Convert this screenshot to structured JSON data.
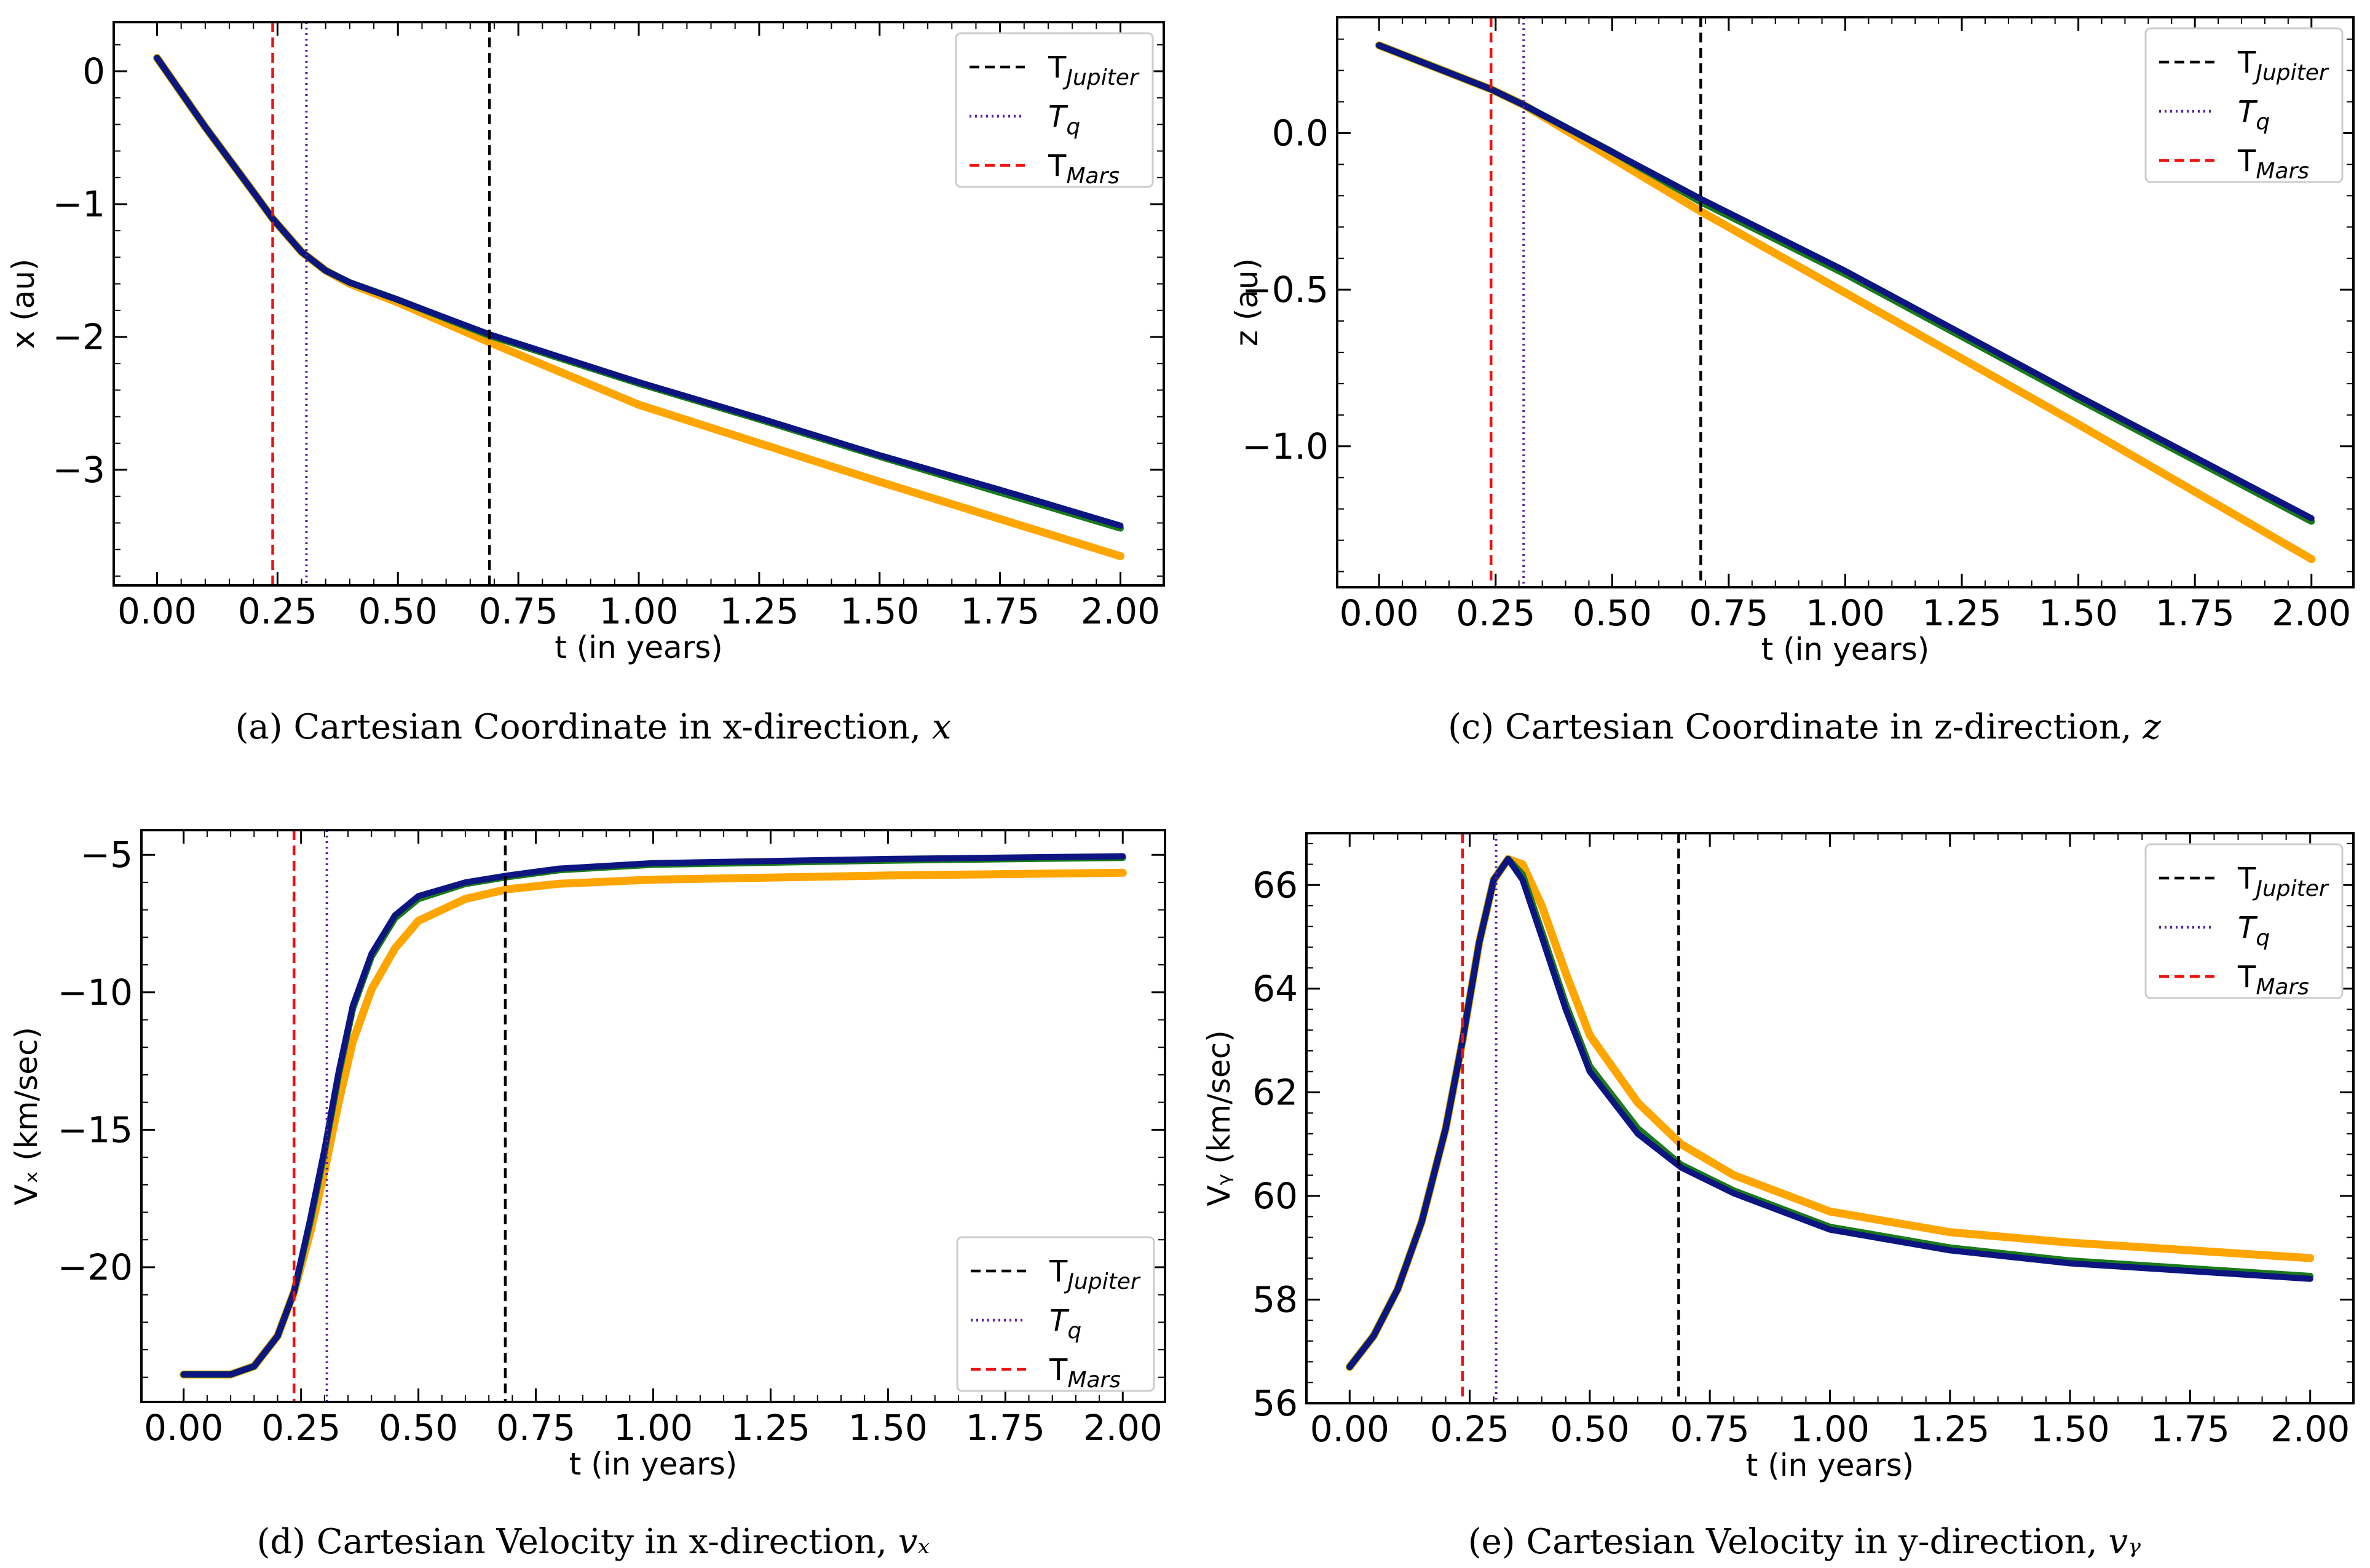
{
  "legend": {
    "jupiter": {
      "base": "T",
      "sub": "Jupiter",
      "color": "#000000",
      "dash": "dashed"
    },
    "q": {
      "base": "T",
      "sub": "q",
      "color": "#5a1fa0",
      "dash": "dotted"
    },
    "mars": {
      "base": "T",
      "sub": "Mars",
      "color": "#ee1111",
      "dash": "dashed"
    }
  },
  "colors": {
    "navy": "#0c1580",
    "green": "#1a7a1a",
    "orange": "#ffa500",
    "axis": "#000000"
  },
  "chart_data": [
    {
      "id": "a",
      "type": "line",
      "caption_text": "(a) Cartesian Coordinate in x-direction,",
      "caption_math": "x",
      "xlabel": "t (in years)",
      "ylabel": "x (au)",
      "xlim": [
        -0.09,
        2.09
      ],
      "ylim": [
        -3.87,
        0.37
      ],
      "xticks": [
        0.0,
        0.25,
        0.5,
        0.75,
        1.0,
        1.25,
        1.5,
        1.75,
        2.0
      ],
      "xtick_labels": [
        "0.00",
        "0.25",
        "0.50",
        "0.75",
        "1.00",
        "1.25",
        "1.50",
        "1.75",
        "2.00"
      ],
      "yticks": [
        0,
        -1,
        -2,
        -3
      ],
      "ytick_labels": [
        "0",
        "−1",
        "−2",
        "−3"
      ],
      "vlines": {
        "mars": 0.24,
        "q": 0.31,
        "jupiter": 0.69
      },
      "legend_position": "top-right",
      "series": [
        {
          "name": "orange",
          "x": [
            0.0,
            0.1,
            0.2,
            0.24,
            0.3,
            0.35,
            0.4,
            0.5,
            0.69,
            1.0,
            1.25,
            1.5,
            1.75,
            2.0
          ],
          "y": [
            0.1,
            -0.42,
            -0.91,
            -1.11,
            -1.36,
            -1.5,
            -1.6,
            -1.74,
            -2.04,
            -2.51,
            -2.8,
            -3.09,
            -3.37,
            -3.65
          ]
        },
        {
          "name": "green",
          "x": [
            0.0,
            0.1,
            0.2,
            0.24,
            0.3,
            0.35,
            0.4,
            0.5,
            0.69,
            1.0,
            1.25,
            1.5,
            1.75,
            2.0
          ],
          "y": [
            0.1,
            -0.42,
            -0.91,
            -1.11,
            -1.36,
            -1.5,
            -1.59,
            -1.72,
            -1.99,
            -2.35,
            -2.62,
            -2.9,
            -3.17,
            -3.44
          ]
        },
        {
          "name": "navy",
          "x": [
            0.0,
            0.1,
            0.2,
            0.24,
            0.3,
            0.35,
            0.4,
            0.5,
            0.69,
            1.0,
            1.25,
            1.5,
            1.75,
            2.0
          ],
          "y": [
            0.1,
            -0.42,
            -0.91,
            -1.11,
            -1.36,
            -1.5,
            -1.59,
            -1.72,
            -1.98,
            -2.34,
            -2.61,
            -2.89,
            -3.15,
            -3.42
          ]
        }
      ]
    },
    {
      "id": "c",
      "type": "line",
      "caption_text": "(c) Cartesian Coordinate in z-direction,",
      "caption_math": "z",
      "xlabel": "t (in years)",
      "ylabel": "z (au)",
      "xlim": [
        -0.09,
        2.09
      ],
      "ylim": [
        -1.45,
        0.37
      ],
      "xticks": [
        0.0,
        0.25,
        0.5,
        0.75,
        1.0,
        1.25,
        1.5,
        1.75,
        2.0
      ],
      "xtick_labels": [
        "0.00",
        "0.25",
        "0.50",
        "0.75",
        "1.00",
        "1.25",
        "1.50",
        "1.75",
        "2.00"
      ],
      "yticks": [
        0.0,
        -0.5,
        -1.0
      ],
      "ytick_labels": [
        "0.0",
        "−0.5",
        "−1.0"
      ],
      "vlines": {
        "mars": 0.24,
        "q": 0.31,
        "jupiter": 0.69
      },
      "legend_position": "top-right",
      "series": [
        {
          "name": "orange",
          "x": [
            0.0,
            0.24,
            0.31,
            0.5,
            0.69,
            1.0,
            1.5,
            2.0
          ],
          "y": [
            0.28,
            0.14,
            0.09,
            -0.08,
            -0.25,
            -0.51,
            -0.93,
            -1.36
          ]
        },
        {
          "name": "green",
          "x": [
            0.0,
            0.24,
            0.31,
            0.5,
            0.69,
            1.0,
            1.5,
            2.0
          ],
          "y": [
            0.28,
            0.14,
            0.09,
            -0.06,
            -0.22,
            -0.45,
            -0.85,
            -1.24
          ]
        },
        {
          "name": "navy",
          "x": [
            0.0,
            0.24,
            0.31,
            0.5,
            0.69,
            1.0,
            1.5,
            2.0
          ],
          "y": [
            0.28,
            0.14,
            0.09,
            -0.06,
            -0.21,
            -0.44,
            -0.84,
            -1.23
          ]
        }
      ]
    },
    {
      "id": "d",
      "type": "line",
      "caption_text": "(d) Cartesian Velocity in x-direction,",
      "caption_math": "vₓ",
      "xlabel": "t (in years)",
      "ylabel": "Vₓ (km/sec)",
      "xlim": [
        -0.09,
        2.09
      ],
      "ylim": [
        -24.9,
        -4.1
      ],
      "xticks": [
        0.0,
        0.25,
        0.5,
        0.75,
        1.0,
        1.25,
        1.5,
        1.75,
        2.0
      ],
      "xtick_labels": [
        "0.00",
        "0.25",
        "0.50",
        "0.75",
        "1.00",
        "1.25",
        "1.50",
        "1.75",
        "2.00"
      ],
      "yticks": [
        -5,
        -10,
        -15,
        -20
      ],
      "ytick_labels": [
        "−5",
        "−10",
        "−15",
        "−20"
      ],
      "vlines": {
        "mars": 0.235,
        "q": 0.305,
        "jupiter": 0.685
      },
      "legend_position": "bottom-right",
      "series": [
        {
          "name": "orange",
          "x": [
            0.0,
            0.1,
            0.15,
            0.2,
            0.235,
            0.27,
            0.3,
            0.33,
            0.36,
            0.4,
            0.45,
            0.5,
            0.6,
            0.69,
            0.8,
            1.0,
            1.5,
            2.0
          ],
          "y": [
            -23.9,
            -23.9,
            -23.6,
            -22.5,
            -20.9,
            -18.7,
            -16.5,
            -14.0,
            -11.8,
            -9.9,
            -8.4,
            -7.4,
            -6.6,
            -6.25,
            -6.05,
            -5.9,
            -5.75,
            -5.65
          ]
        },
        {
          "name": "green",
          "x": [
            0.0,
            0.1,
            0.15,
            0.2,
            0.235,
            0.27,
            0.3,
            0.33,
            0.36,
            0.4,
            0.45,
            0.5,
            0.6,
            0.69,
            0.8,
            1.0,
            1.5,
            2.0
          ],
          "y": [
            -23.9,
            -23.9,
            -23.6,
            -22.5,
            -20.9,
            -18.3,
            -15.8,
            -13.0,
            -10.6,
            -8.7,
            -7.3,
            -6.6,
            -6.05,
            -5.8,
            -5.55,
            -5.35,
            -5.2,
            -5.1
          ]
        },
        {
          "name": "navy",
          "x": [
            0.0,
            0.1,
            0.15,
            0.2,
            0.235,
            0.27,
            0.3,
            0.33,
            0.36,
            0.4,
            0.45,
            0.5,
            0.6,
            0.69,
            0.8,
            1.0,
            1.5,
            2.0
          ],
          "y": [
            -23.9,
            -23.9,
            -23.6,
            -22.5,
            -20.9,
            -18.2,
            -15.7,
            -12.9,
            -10.5,
            -8.6,
            -7.2,
            -6.5,
            -6.0,
            -5.75,
            -5.5,
            -5.3,
            -5.15,
            -5.05
          ]
        }
      ]
    },
    {
      "id": "e",
      "type": "line",
      "caption_text": "(e) Cartesian Velocity in y-direction,",
      "caption_math": "vᵧ",
      "xlabel": "t (in years)",
      "ylabel": "Vᵧ (km/sec)",
      "xlim": [
        -0.09,
        2.09
      ],
      "ylim": [
        56.0,
        67.0
      ],
      "xticks": [
        0.0,
        0.25,
        0.5,
        0.75,
        1.0,
        1.25,
        1.5,
        1.75,
        2.0
      ],
      "xtick_labels": [
        "0.00",
        "0.25",
        "0.50",
        "0.75",
        "1.00",
        "1.25",
        "1.50",
        "1.75",
        "2.00"
      ],
      "yticks": [
        56,
        58,
        60,
        62,
        64,
        66
      ],
      "ytick_labels": [
        "56",
        "58",
        "60",
        "62",
        "64",
        "66"
      ],
      "vlines": {
        "mars": 0.235,
        "q": 0.305,
        "jupiter": 0.685
      },
      "legend_position": "top-right",
      "series": [
        {
          "name": "orange",
          "x": [
            0.0,
            0.05,
            0.1,
            0.15,
            0.2,
            0.235,
            0.27,
            0.3,
            0.33,
            0.36,
            0.4,
            0.45,
            0.5,
            0.6,
            0.69,
            0.8,
            1.0,
            1.25,
            1.5,
            1.75,
            2.0
          ],
          "y": [
            56.7,
            57.3,
            58.2,
            59.5,
            61.3,
            63.0,
            64.9,
            66.1,
            66.5,
            66.4,
            65.6,
            64.3,
            63.1,
            61.8,
            61.0,
            60.4,
            59.7,
            59.3,
            59.1,
            58.95,
            58.8
          ]
        },
        {
          "name": "green",
          "x": [
            0.0,
            0.05,
            0.1,
            0.15,
            0.2,
            0.235,
            0.27,
            0.3,
            0.33,
            0.36,
            0.4,
            0.45,
            0.5,
            0.6,
            0.69,
            0.8,
            1.0,
            1.25,
            1.5,
            1.75,
            2.0
          ],
          "y": [
            56.7,
            57.3,
            58.2,
            59.5,
            61.3,
            63.0,
            64.9,
            66.1,
            66.5,
            66.2,
            65.1,
            63.7,
            62.5,
            61.3,
            60.6,
            60.1,
            59.4,
            59.0,
            58.75,
            58.6,
            58.45
          ]
        },
        {
          "name": "navy",
          "x": [
            0.0,
            0.05,
            0.1,
            0.15,
            0.2,
            0.235,
            0.27,
            0.3,
            0.33,
            0.36,
            0.4,
            0.45,
            0.5,
            0.6,
            0.69,
            0.8,
            1.0,
            1.25,
            1.5,
            1.75,
            2.0
          ],
          "y": [
            56.7,
            57.3,
            58.2,
            59.5,
            61.3,
            63.0,
            64.9,
            66.1,
            66.5,
            66.1,
            65.0,
            63.6,
            62.4,
            61.2,
            60.55,
            60.05,
            59.35,
            58.95,
            58.7,
            58.55,
            58.4
          ]
        }
      ]
    }
  ]
}
